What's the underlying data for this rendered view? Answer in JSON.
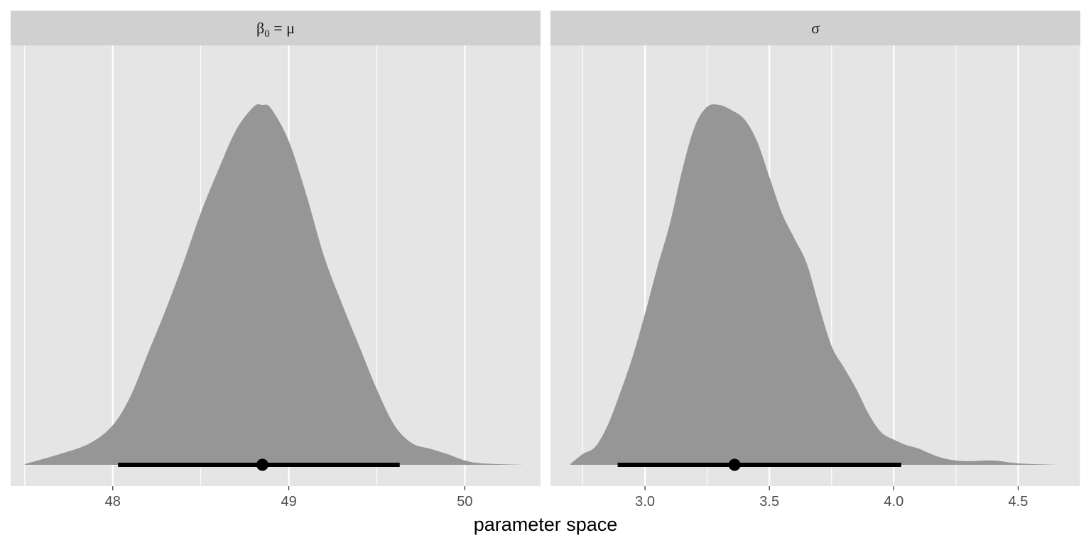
{
  "chart_data": {
    "type": "area",
    "xlabel": "parameter space",
    "ylabel": "",
    "grid": true,
    "legend": "none",
    "colors": {
      "panel_bg": "#e5e5e5",
      "strip_bg": "#d0d0d0",
      "grid_major": "#ffffff",
      "density_fill": "#969696",
      "interval": "#000000",
      "tick_text": "#4d4d4d"
    },
    "panels": [
      {
        "label_parts": {
          "symbol": "β",
          "subscript": "0",
          "rest": " = μ"
        },
        "xlim": [
          47.42,
          50.43
        ],
        "x_ticks": [
          48,
          49,
          50
        ],
        "x_tick_labels": [
          "48",
          "49",
          "50"
        ],
        "x_minor": [
          47.5,
          48.5,
          49.5
        ],
        "point_estimate": 48.85,
        "interval": [
          48.03,
          49.63
        ],
        "density": [
          [
            47.5,
            0.002
          ],
          [
            47.7,
            0.03
          ],
          [
            47.87,
            0.06
          ],
          [
            48.0,
            0.11
          ],
          [
            48.1,
            0.19
          ],
          [
            48.2,
            0.31
          ],
          [
            48.3,
            0.43
          ],
          [
            48.4,
            0.56
          ],
          [
            48.5,
            0.7
          ],
          [
            48.6,
            0.82
          ],
          [
            48.7,
            0.93
          ],
          [
            48.8,
            0.995
          ],
          [
            48.85,
            1.0
          ],
          [
            48.9,
            0.99
          ],
          [
            49.0,
            0.9
          ],
          [
            49.1,
            0.75
          ],
          [
            49.2,
            0.58
          ],
          [
            49.3,
            0.45
          ],
          [
            49.4,
            0.33
          ],
          [
            49.5,
            0.21
          ],
          [
            49.6,
            0.11
          ],
          [
            49.7,
            0.06
          ],
          [
            49.8,
            0.045
          ],
          [
            49.9,
            0.03
          ],
          [
            50.0,
            0.012
          ],
          [
            50.1,
            0.004
          ],
          [
            50.34,
            0.0
          ]
        ]
      },
      {
        "label_parts": {
          "symbol": "σ",
          "subscript": "",
          "rest": ""
        },
        "xlim": [
          2.62,
          4.75
        ],
        "x_ticks": [
          3.0,
          3.5,
          4.0,
          4.5
        ],
        "x_tick_labels": [
          "3.0",
          "3.5",
          "4.0",
          "4.5"
        ],
        "x_minor": [
          2.75,
          3.25,
          3.75,
          4.25,
          4.75
        ],
        "point_estimate": 3.36,
        "interval": [
          2.89,
          4.03
        ],
        "density": [
          [
            2.7,
            0.002
          ],
          [
            2.75,
            0.03
          ],
          [
            2.8,
            0.05
          ],
          [
            2.85,
            0.11
          ],
          [
            2.9,
            0.2
          ],
          [
            2.95,
            0.3
          ],
          [
            3.0,
            0.42
          ],
          [
            3.05,
            0.55
          ],
          [
            3.1,
            0.67
          ],
          [
            3.15,
            0.82
          ],
          [
            3.2,
            0.94
          ],
          [
            3.25,
            0.995
          ],
          [
            3.3,
            1.0
          ],
          [
            3.35,
            0.985
          ],
          [
            3.4,
            0.96
          ],
          [
            3.45,
            0.9
          ],
          [
            3.5,
            0.8
          ],
          [
            3.55,
            0.7
          ],
          [
            3.6,
            0.63
          ],
          [
            3.65,
            0.56
          ],
          [
            3.7,
            0.44
          ],
          [
            3.75,
            0.33
          ],
          [
            3.8,
            0.27
          ],
          [
            3.85,
            0.21
          ],
          [
            3.9,
            0.14
          ],
          [
            3.95,
            0.09
          ],
          [
            4.0,
            0.07
          ],
          [
            4.05,
            0.055
          ],
          [
            4.1,
            0.045
          ],
          [
            4.15,
            0.03
          ],
          [
            4.2,
            0.018
          ],
          [
            4.25,
            0.012
          ],
          [
            4.3,
            0.01
          ],
          [
            4.4,
            0.012
          ],
          [
            4.5,
            0.004
          ],
          [
            4.66,
            0.0
          ]
        ]
      }
    ]
  }
}
